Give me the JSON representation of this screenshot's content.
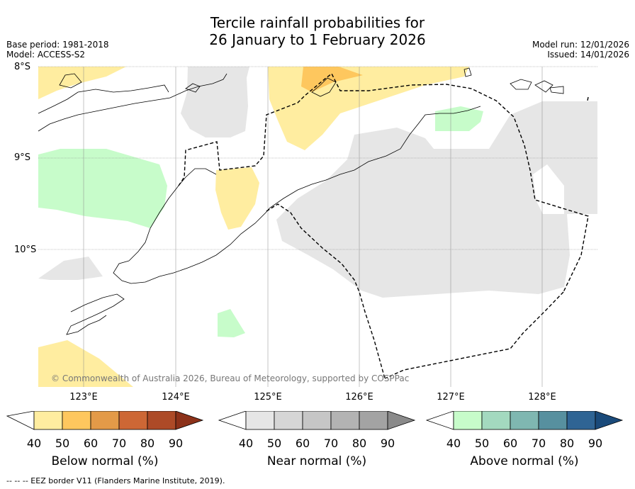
{
  "header": {
    "title_line1": "Tercile rainfall probabilities for",
    "title_line2": "26 January to 1 February 2026",
    "base_period": "Base period: 1981-2018",
    "model": "Model: ACCESS-S2",
    "model_run": "Model run: 12/01/2026",
    "issued": "Issued: 14/01/2026"
  },
  "map": {
    "lat_labels": [
      "8°S",
      "9°S",
      "10°S"
    ],
    "lon_labels": [
      "123°E",
      "124°E",
      "125°E",
      "126°E",
      "127°E",
      "128°E"
    ],
    "copyright": "© Commonwealth of Australia 2026, Bureau of Meteorology, supported by COSPPac",
    "colors": {
      "below_50": "#ffeda0",
      "below_60": "#fec75e",
      "near_50": "#e6e6e6",
      "above_50": "#c7fcca"
    }
  },
  "legend": {
    "ticks": [
      "40",
      "50",
      "60",
      "70",
      "80",
      "90"
    ],
    "below": {
      "title": "Below normal (%)",
      "colors": [
        "#ffeda0",
        "#fec75e",
        "#e39a48",
        "#cd6735",
        "#ad4a27",
        "#8c3119"
      ]
    },
    "near": {
      "title": "Near normal (%)",
      "colors": [
        "#e6e6e6",
        "#d6d6d6",
        "#c6c6c6",
        "#b3b3b3",
        "#a3a3a3",
        "#8a8a8a"
      ]
    },
    "above": {
      "title": "Above normal (%)",
      "colors": [
        "#c7fcca",
        "#a3d9bf",
        "#7fb7b1",
        "#57909f",
        "#2f6494",
        "#1a4a7a"
      ]
    }
  },
  "footer": {
    "eez_note": "--  --  -- EEZ border V11 (Flanders Marine Institute, 2019)."
  }
}
